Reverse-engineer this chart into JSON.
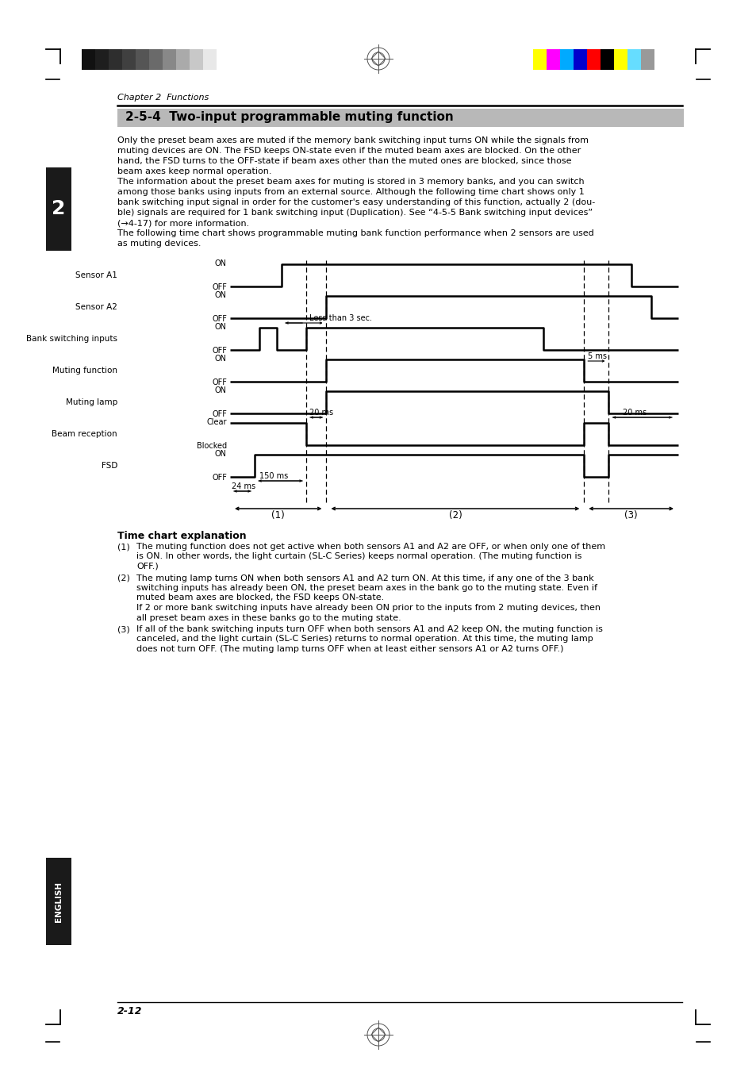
{
  "title": "2-5-4  Two-input programmable muting function",
  "chapter": "Chapter 2  Functions",
  "page": "2-12",
  "body_text": [
    "Only the preset beam axes are muted if the memory bank switching input turns ON while the signals from",
    "muting devices are ON. The FSD keeps ON-state even if the muted beam axes are blocked. On the other",
    "hand, the FSD turns to the OFF-state if beam axes other than the muted ones are blocked, since those",
    "beam axes keep normal operation.",
    "The information about the preset beam axes for muting is stored in 3 memory banks, and you can switch",
    "among those banks using inputs from an external source. Although the following time chart shows only 1",
    "bank switching input signal in order for the customer's easy understanding of this function, actually 2 (dou-",
    "ble) signals are required for 1 bank switching input (Duplication). See “4-5-5 Bank switching input devices”",
    "(→4-17) for more information.",
    "The following time chart shows programmable muting bank function performance when 2 sensors are used",
    "as muting devices."
  ],
  "explanation_title": "Time chart explanation",
  "explanation_items": [
    {
      "prefix": "(1)",
      "lines": [
        "The muting function does not get active when both sensors A1 and A2 are OFF, or when only one of them",
        "   is ON. In other words, the light curtain (SL-C Series) keeps normal operation. (The muting function is",
        "   OFF.)"
      ]
    },
    {
      "prefix": "(2)",
      "lines": [
        "The muting lamp turns ON when both sensors A1 and A2 turn ON. At this time, if any one of the 3 bank",
        "   switching inputs has already been ON, the preset beam axes in the bank go to the muting state. Even if",
        "   muted beam axes are blocked, the FSD keeps ON-state.",
        "   If 2 or more bank switching inputs have already been ON prior to the inputs from 2 muting devices, then",
        "   all preset beam axes in these banks go to the muting state."
      ]
    },
    {
      "prefix": "(3)",
      "lines": [
        "If all of the bank switching inputs turn OFF when both sensors A1 and A2 keep ON, the muting function is",
        "   canceled, and the light curtain (SL-C Series) returns to normal operation. At this time, the muting lamp",
        "   does not turn OFF. (The muting lamp turns OFF when at least either sensors A1 or A2 turns OFF.)"
      ]
    }
  ],
  "bg_color": "#ffffff",
  "header_bg": "#b8b8b8",
  "sidebar_bg": "#1a1a1a",
  "colors_left": [
    "#111111",
    "#1e1e1e",
    "#2e2e2e",
    "#404040",
    "#555555",
    "#6a6a6a",
    "#888888",
    "#aaaaaa",
    "#c8c8c8",
    "#e8e8e8"
  ],
  "colors_right": [
    "#ffff00",
    "#ff00ff",
    "#00aaff",
    "#0000cc",
    "#ff0000",
    "#000000",
    "#ffff00",
    "#66ddff",
    "#999999"
  ]
}
